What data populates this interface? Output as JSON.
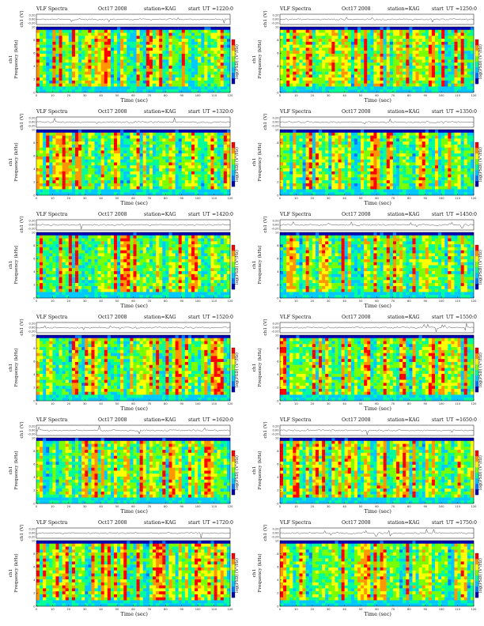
{
  "common": {
    "header_title": "VLF Spectra",
    "header_date": "Oct17 2008",
    "header_station": "station=KAG",
    "header_start": "start",
    "header_ut": "UT",
    "ts_ylabel": "ch1 (V)",
    "spec_ylabel": "ch1\nFrequency (kHz)",
    "xlabel": "Time (sec)",
    "colorbar_label": "log(PSD) (V²/Hz)"
  },
  "colors": {
    "background": "#ffffff",
    "colormap": [
      "#0000b4",
      "#0078ff",
      "#00c8ff",
      "#00ff96",
      "#78ff00",
      "#ffff00",
      "#ff9600",
      "#ff0000"
    ]
  },
  "panels": [
    {
      "start_time": "=1220:0"
    },
    {
      "start_time": "=1250:0"
    },
    {
      "start_time": "=1320:0"
    },
    {
      "start_time": "=1350:0"
    },
    {
      "start_time": "=1420:0"
    },
    {
      "start_time": "=1450:0"
    },
    {
      "start_time": "=1520:0"
    },
    {
      "start_time": "=1550:0"
    },
    {
      "start_time": "=1620:0"
    },
    {
      "start_time": "=1650:0"
    },
    {
      "start_time": "=1720:0"
    },
    {
      "start_time": "=1750:0"
    }
  ],
  "chart_data": {
    "type": "heatmap",
    "description_units": {
      "x": "Time (sec)",
      "y": "Frequency (kHz)"
    },
    "x_ticks": [
      "0",
      "10",
      "20",
      "30",
      "40",
      "50",
      "60",
      "70",
      "80",
      "90",
      "100",
      "110",
      "120"
    ],
    "xlim": [
      0,
      120
    ],
    "y_ticks": [
      "0",
      "2",
      "4",
      "6",
      "8",
      "10"
    ],
    "ylim": [
      0,
      10
    ],
    "signal_band_khz": [
      1,
      9.5
    ],
    "ts_ticks": [
      "0.20",
      "0.00",
      "-0.20"
    ],
    "ts_ylim": [
      -0.2,
      0.2
    ],
    "grid": false
  }
}
